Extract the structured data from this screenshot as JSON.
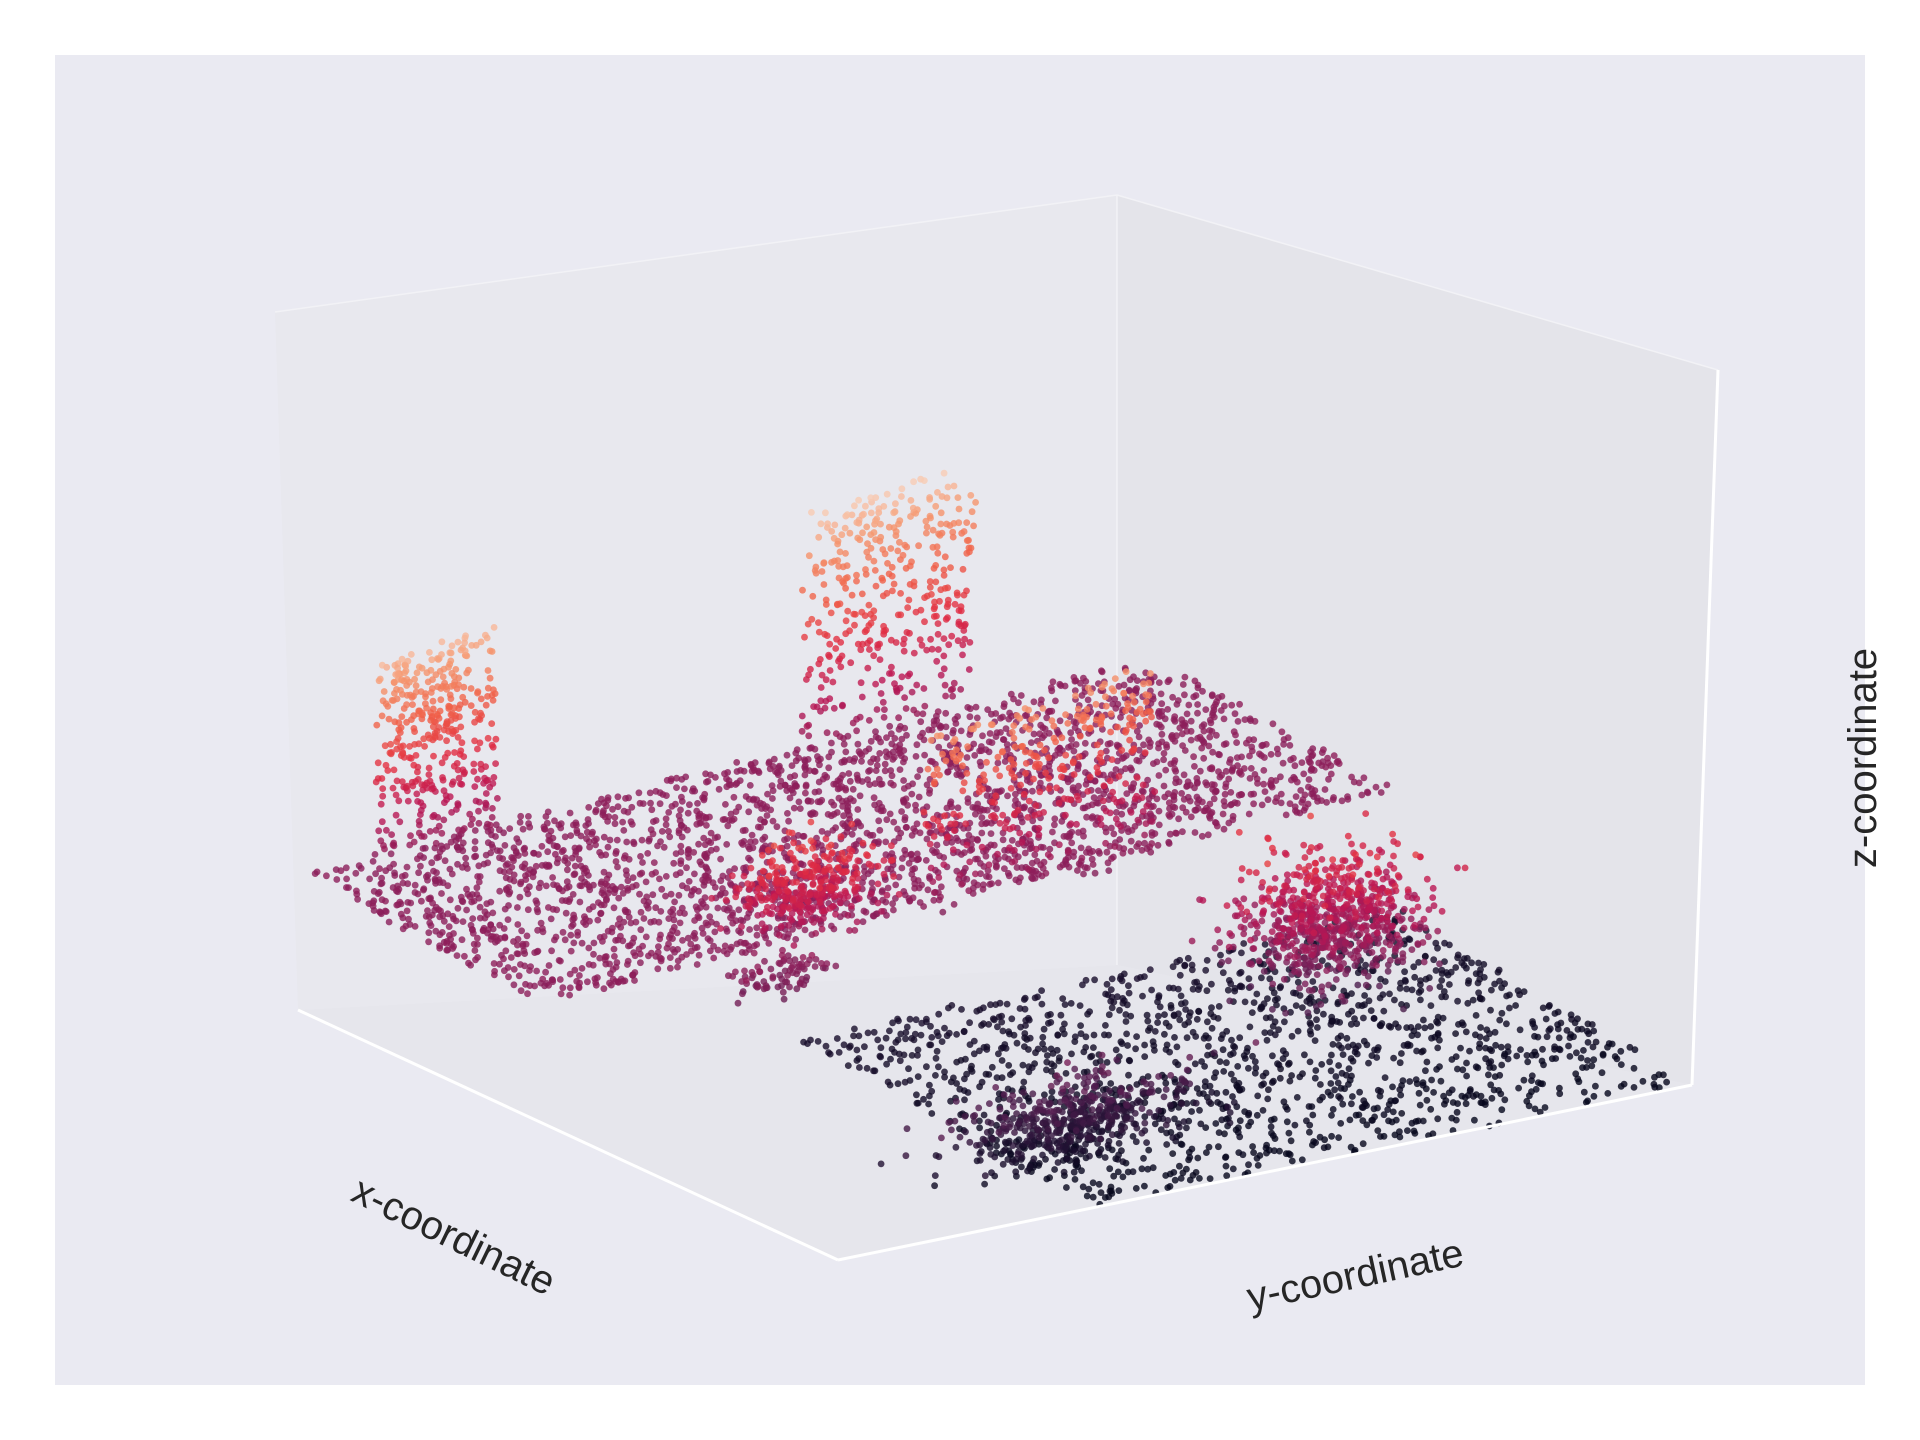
{
  "chart_data": {
    "type": "scatter",
    "projection": "3d",
    "title": "",
    "xlabel": "x-coordinate",
    "ylabel": "y-coordinate",
    "zlabel": "z-coordinate",
    "colormap": "rocket",
    "color_by": "z",
    "grid": false,
    "tick_labels": false,
    "axes_background": "#eaeaf2",
    "pane_color": "#e8e8ed",
    "axis_line_color": "#ffffff",
    "clusters": [
      {
        "kind": "floor",
        "corners": [
          [
            0.0,
            1.0,
            0.38
          ],
          [
            0.45,
            1.0,
            0.38
          ],
          [
            0.45,
            0.0,
            0.38
          ],
          [
            0.0,
            0.0,
            0.38
          ]
        ],
        "z": 0.38,
        "count": 2600
      },
      {
        "kind": "sloped-floor",
        "corners": [
          [
            1.0,
            1.0,
            0.0
          ],
          [
            0.45,
            1.0,
            0.06
          ],
          [
            0.45,
            0.3,
            0.06
          ],
          [
            1.0,
            0.3,
            0.0
          ]
        ],
        "z_range": [
          0.0,
          0.08
        ],
        "count": 1400
      },
      {
        "kind": "wall",
        "ends": [
          [
            0.02,
            0.08
          ],
          [
            0.02,
            0.22
          ]
        ],
        "z_range": [
          0.38,
          0.92
        ],
        "count": 380
      },
      {
        "kind": "wall",
        "ends": [
          [
            0.02,
            0.58
          ],
          [
            0.02,
            0.78
          ]
        ],
        "z_range": [
          0.38,
          0.95
        ],
        "count": 380
      },
      {
        "kind": "wall",
        "ends": [
          [
            0.45,
            0.45
          ],
          [
            0.45,
            0.72
          ]
        ],
        "z_range": [
          0.35,
          0.85
        ],
        "count": 300
      },
      {
        "kind": "blob",
        "center": [
          0.88,
          0.35,
          0.16
        ],
        "spread": [
          0.05,
          0.12,
          0.1
        ],
        "z_range": [
          0.04,
          0.5
        ],
        "count": 500
      },
      {
        "kind": "blob",
        "center": [
          0.77,
          0.72,
          0.45
        ],
        "spread": [
          0.07,
          0.08,
          0.14
        ],
        "z_range": [
          0.1,
          0.75
        ],
        "count": 750
      },
      {
        "kind": "blob",
        "center": [
          0.47,
          0.3,
          0.55
        ],
        "spread": [
          0.04,
          0.07,
          0.1
        ],
        "z_range": [
          0.2,
          0.82
        ],
        "count": 320
      },
      {
        "kind": "blob",
        "center": [
          0.5,
          0.24,
          0.36
        ],
        "spread": [
          0.03,
          0.04,
          0.04
        ],
        "z_range": [
          0.3,
          0.5
        ],
        "count": 80
      }
    ]
  }
}
